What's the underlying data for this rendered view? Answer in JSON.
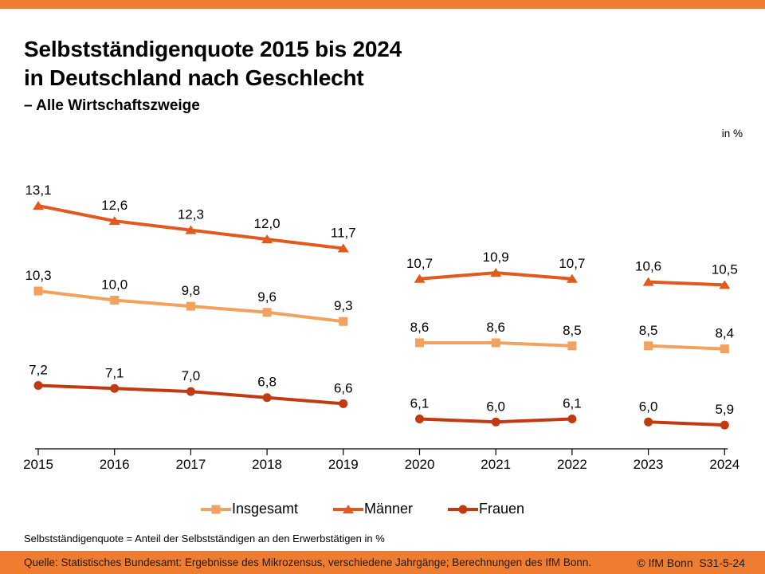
{
  "header": {
    "title_line1": "Selbstständigenquote 2015 bis 2024",
    "title_line2": "in Deutschland nach Geschlecht",
    "subtitle": "– Alle Wirtschaftszweige",
    "unit_label": "in %"
  },
  "footer": {
    "definition": "Selbstständigenquote = Anteil der Selbstständigen an den Erwerbstätigen in %",
    "source": "Quelle: Statistisches Bundesamt: Ergebnisse des Mikrozensus, verschiedene Jahrgänge; Berechnungen des IfM Bonn.",
    "copyright": "© IfM Bonn",
    "figure_id": "S31-5-24"
  },
  "colors": {
    "accent_bar": "#EF7D31",
    "axis": "#000000",
    "label": "#000000"
  },
  "chart_data": {
    "type": "line",
    "title": "Selbstständigenquote 2015 bis 2024 in Deutschland nach Geschlecht – Alle Wirtschaftszweige",
    "unit": "in %",
    "categories": [
      "2015",
      "2016",
      "2017",
      "2018",
      "2019",
      "2020",
      "2021",
      "2022",
      "2023",
      "2024"
    ],
    "gaps_after": [
      "2019",
      "2022"
    ],
    "grid": false,
    "y_axis_visible": false,
    "ylim": [
      5.1,
      13.6
    ],
    "legend_position": "bottom",
    "series": [
      {
        "id": "insgesamt",
        "name": "Insgesamt",
        "color": "#F2A25E",
        "marker": "square",
        "values": [
          10.3,
          10.0,
          9.8,
          9.6,
          9.3,
          8.6,
          8.6,
          8.5,
          8.5,
          8.4
        ],
        "labels": [
          "10,3",
          "10,0",
          "9,8",
          "9,6",
          "9,3",
          "8,6",
          "8,6",
          "8,5",
          "8,5",
          "8,4"
        ]
      },
      {
        "id": "maenner",
        "name": "Männer",
        "color": "#E2581D",
        "marker": "triangle",
        "values": [
          13.1,
          12.6,
          12.3,
          12.0,
          11.7,
          10.7,
          10.9,
          10.7,
          10.6,
          10.5
        ],
        "labels": [
          "13,1",
          "12,6",
          "12,3",
          "12,0",
          "11,7",
          "10,7",
          "10,9",
          "10,7",
          "10,6",
          "10,5"
        ]
      },
      {
        "id": "frauen",
        "name": "Frauen",
        "color": "#C23B10",
        "marker": "circle",
        "values": [
          7.2,
          7.1,
          7.0,
          6.8,
          6.6,
          6.1,
          6.0,
          6.1,
          6.0,
          5.9
        ],
        "labels": [
          "7,2",
          "7,1",
          "7,0",
          "6,8",
          "6,6",
          "6,1",
          "6,0",
          "6,1",
          "6,0",
          "5,9"
        ]
      }
    ]
  }
}
